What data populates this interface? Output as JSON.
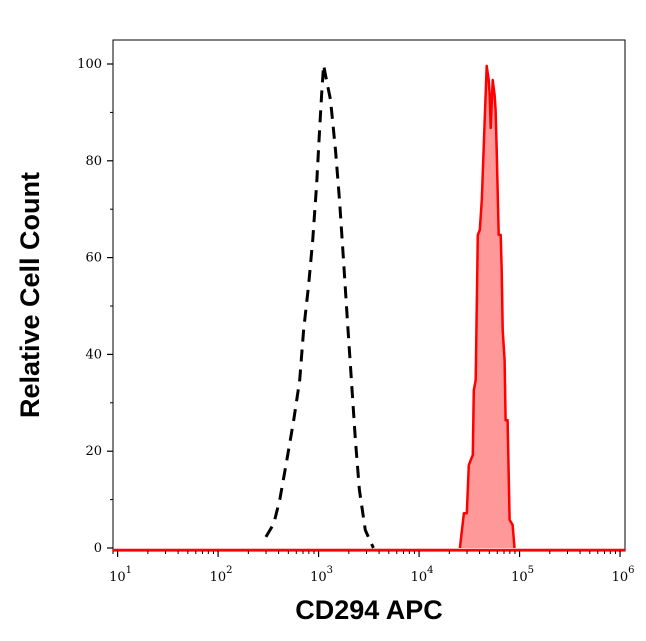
{
  "chart_data": {
    "type": "area",
    "title": "",
    "xlabel": "CD294 APC",
    "ylabel": "Relative Cell Count",
    "x_scale": "log",
    "xlim": [
      9,
      1120000
    ],
    "ylim": [
      0,
      105
    ],
    "x_ticks": [
      {
        "base": "10",
        "exp": "1"
      },
      {
        "base": "10",
        "exp": "2"
      },
      {
        "base": "10",
        "exp": "3"
      },
      {
        "base": "10",
        "exp": "4"
      },
      {
        "base": "10",
        "exp": "5"
      },
      {
        "base": "10",
        "exp": "6"
      }
    ],
    "y_ticks": [
      "0",
      "20",
      "40",
      "60",
      "80",
      "100"
    ],
    "grid": false,
    "series": [
      {
        "style": "dashed-line",
        "color": "#000000",
        "x": [
          299,
          358,
          411,
          482,
          565,
          649,
          710,
          796,
          873,
          955,
          1023,
          1072,
          1122,
          1172,
          1315,
          1472,
          1614,
          1770,
          1936,
          2123,
          2323,
          2547,
          2917,
          3508
        ],
        "y": [
          2.3,
          5,
          10,
          18,
          26.4,
          34.7,
          45,
          54.3,
          63.6,
          75,
          86.4,
          93.6,
          99.8,
          97.7,
          92.6,
          82.2,
          71.9,
          59.5,
          47,
          34.7,
          22.3,
          12,
          3.7,
          0
        ]
      },
      {
        "style": "filled-line",
        "color": "#ff0000",
        "fill": "#ff9999",
        "x": [
          25470,
          27930,
          29850,
          31260,
          32730,
          34280,
          35070,
          36640,
          38370,
          40180,
          42070,
          44060,
          47100,
          49320,
          50470,
          51640,
          54080,
          56490,
          57810,
          59160,
          61940,
          64860,
          66370,
          67920,
          70960,
          72610,
          76030,
          79620,
          85310,
          89130
        ],
        "y": [
          0,
          7.2,
          7.2,
          17.1,
          18.2,
          19.2,
          32.6,
          34.7,
          64.7,
          65.7,
          71.9,
          83.3,
          99.6,
          96.7,
          93.6,
          86.8,
          96.7,
          93.6,
          90.5,
          82.2,
          64.7,
          64.7,
          57.4,
          45,
          38.8,
          26.4,
          26.4,
          5.8,
          4.8,
          0
        ]
      }
    ]
  }
}
